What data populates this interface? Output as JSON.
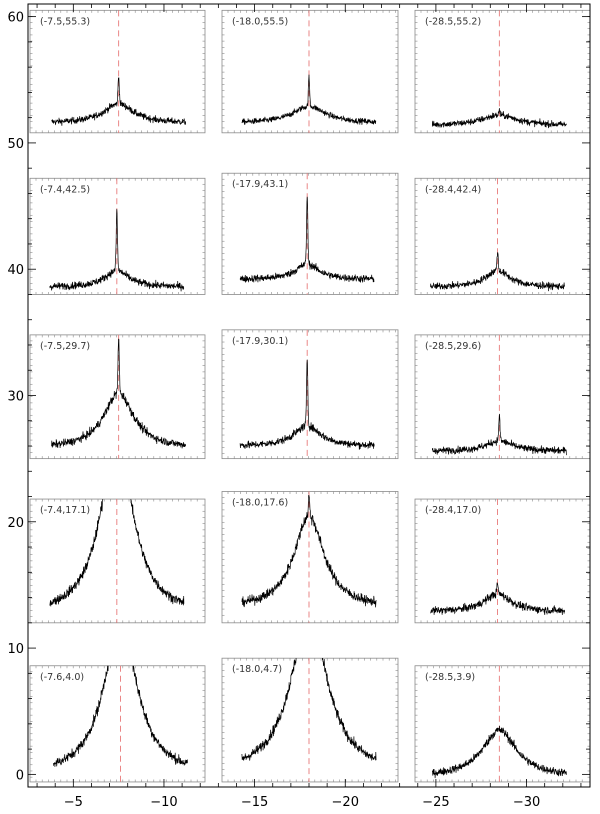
{
  "chart_data": {
    "type": "line",
    "grid": false,
    "x_ticks": [
      -5,
      -10,
      -15,
      -20,
      -25,
      -30
    ],
    "y_ticks": [
      0,
      10,
      20,
      30,
      40,
      50,
      60
    ],
    "xlim": [
      -2.5,
      -33.5
    ],
    "ylim": [
      -1,
      61
    ],
    "line_color": "#000000",
    "marker_color": "#e87a7a",
    "panels": [
      {
        "label": "(-7.5,55.3)",
        "center": -7.5,
        "baseline": 51.6,
        "noise": 0.25,
        "broad_amp": 1.5,
        "broad_w": 1.0,
        "spike_amp": 2.2
      },
      {
        "label": "(-18.0,55.5)",
        "center": -18.0,
        "baseline": 51.6,
        "noise": 0.22,
        "broad_amp": 1.3,
        "broad_w": 1.1,
        "spike_amp": 2.3
      },
      {
        "label": "(-28.5,55.2)",
        "center": -28.5,
        "baseline": 51.4,
        "noise": 0.25,
        "broad_amp": 0.8,
        "broad_w": 1.2,
        "spike_amp": 0.4
      },
      {
        "label": "(-7.4,42.5)",
        "center": -7.4,
        "baseline": 38.6,
        "noise": 0.28,
        "broad_amp": 1.3,
        "broad_w": 0.8,
        "spike_amp": 4.8
      },
      {
        "label": "(-17.9,43.1)",
        "center": -17.9,
        "baseline": 39.2,
        "noise": 0.28,
        "broad_amp": 1.2,
        "broad_w": 0.8,
        "spike_amp": 5.4
      },
      {
        "label": "(-28.4,42.4)",
        "center": -28.4,
        "baseline": 38.6,
        "noise": 0.26,
        "broad_amp": 1.3,
        "broad_w": 0.8,
        "spike_amp": 1.5
      },
      {
        "label": "(-7.5,29.7)",
        "center": -7.5,
        "baseline": 25.9,
        "noise": 0.3,
        "broad_amp": 4.3,
        "broad_w": 1.0,
        "spike_amp": 4.3
      },
      {
        "label": "(-17.9,30.1)",
        "center": -17.9,
        "baseline": 26.0,
        "noise": 0.28,
        "broad_amp": 1.6,
        "broad_w": 0.9,
        "spike_amp": 5.4
      },
      {
        "label": "(-28.5,29.6)",
        "center": -28.5,
        "baseline": 25.6,
        "noise": 0.27,
        "broad_amp": 0.8,
        "broad_w": 0.9,
        "spike_amp": 2.0
      },
      {
        "label": "(-7.4,17.1)",
        "center": -7.4,
        "baseline": 12.9,
        "noise": 0.35,
        "broad_amp": 14.0,
        "broad_w": 1.05,
        "spike_amp": 0
      },
      {
        "label": "(-18.0,17.6)",
        "center": -18.0,
        "baseline": 13.3,
        "noise": 0.35,
        "broad_amp": 7.2,
        "broad_w": 1.0,
        "spike_amp": 1.6
      },
      {
        "label": "(-28.4,17.0)",
        "center": -28.4,
        "baseline": 12.9,
        "noise": 0.3,
        "broad_amp": 1.4,
        "broad_w": 0.9,
        "spike_amp": 0.8
      },
      {
        "label": "(-7.6,4.0)",
        "center": -7.6,
        "baseline": 0.2,
        "noise": 0.35,
        "broad_amp": 12.0,
        "broad_w": 1.1,
        "spike_amp": 0
      },
      {
        "label": "(-18.0,4.7)",
        "center": -18.0,
        "baseline": 0.4,
        "noise": 0.35,
        "broad_amp": 12.0,
        "broad_w": 1.25,
        "spike_amp": 0
      },
      {
        "label": "(-28.5,3.9)",
        "center": -28.5,
        "baseline": -0.1,
        "noise": 0.3,
        "broad_amp": 3.6,
        "broad_w": 1.15,
        "spike_amp": 0
      }
    ]
  }
}
